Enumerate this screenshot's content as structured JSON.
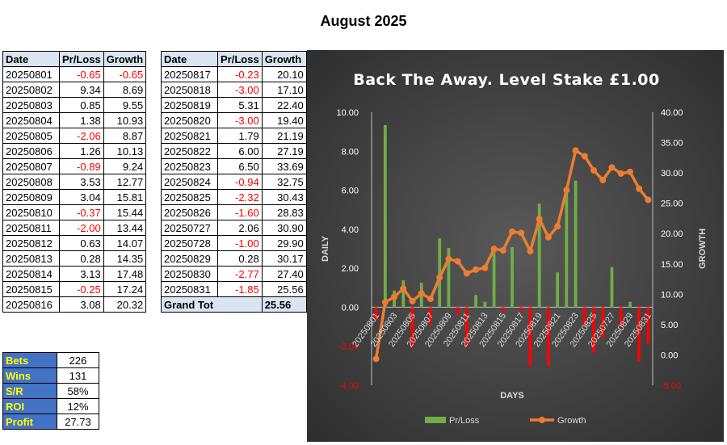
{
  "page_title": "August 2025",
  "table_headers": {
    "date": "Date",
    "pl": "Pr/Loss",
    "growth": "Growth"
  },
  "left_rows": [
    {
      "date": "20250801",
      "pl": "-0.65",
      "growth": "-0.65"
    },
    {
      "date": "20250802",
      "pl": "9.34",
      "growth": "8.69"
    },
    {
      "date": "20250803",
      "pl": "0.85",
      "growth": "9.55"
    },
    {
      "date": "20250804",
      "pl": "1.38",
      "growth": "10.93"
    },
    {
      "date": "20250805",
      "pl": "-2.06",
      "growth": "8.87"
    },
    {
      "date": "20250806",
      "pl": "1.26",
      "growth": "10.13"
    },
    {
      "date": "20250807",
      "pl": "-0.89",
      "growth": "9.24"
    },
    {
      "date": "20250808",
      "pl": "3.53",
      "growth": "12.77"
    },
    {
      "date": "20250809",
      "pl": "3.04",
      "growth": "15.81"
    },
    {
      "date": "20250810",
      "pl": "-0.37",
      "growth": "15.44"
    },
    {
      "date": "20250811",
      "pl": "-2.00",
      "growth": "13.44"
    },
    {
      "date": "20250812",
      "pl": "0.63",
      "growth": "14.07"
    },
    {
      "date": "20250813",
      "pl": "0.28",
      "growth": "14.35"
    },
    {
      "date": "20250814",
      "pl": "3.13",
      "growth": "17.48"
    },
    {
      "date": "20250815",
      "pl": "-0.25",
      "growth": "17.24"
    },
    {
      "date": "20250816",
      "pl": "3.08",
      "growth": "20.32"
    }
  ],
  "right_rows": [
    {
      "date": "20250817",
      "pl": "-0.23",
      "growth": "20.10"
    },
    {
      "date": "20250818",
      "pl": "-3.00",
      "growth": "17.10"
    },
    {
      "date": "20250819",
      "pl": "5.31",
      "growth": "22.40"
    },
    {
      "date": "20250820",
      "pl": "-3.00",
      "growth": "19.40"
    },
    {
      "date": "20250821",
      "pl": "1.79",
      "growth": "21.19"
    },
    {
      "date": "20250822",
      "pl": "6.00",
      "growth": "27.19"
    },
    {
      "date": "20250823",
      "pl": "6.50",
      "growth": "33.69"
    },
    {
      "date": "20250824",
      "pl": "-0.94",
      "growth": "32.75"
    },
    {
      "date": "20250825",
      "pl": "-2.32",
      "growth": "30.43"
    },
    {
      "date": "20250826",
      "pl": "-1.60",
      "growth": "28.83"
    },
    {
      "date": "20250727",
      "pl": "2.06",
      "growth": "30.90"
    },
    {
      "date": "20250728",
      "pl": "-1.00",
      "growth": "29.90"
    },
    {
      "date": "20250829",
      "pl": "0.28",
      "growth": "30.17"
    },
    {
      "date": "20250830",
      "pl": "-2.77",
      "growth": "27.40"
    },
    {
      "date": "20250831",
      "pl": "-1.85",
      "growth": "25.56"
    }
  ],
  "grand_total": {
    "label": "Grand Tot",
    "value": "25.56"
  },
  "stats": [
    {
      "label": "Bets",
      "value": "226"
    },
    {
      "label": "Wins",
      "value": "131"
    },
    {
      "label": "S/R",
      "value": "58%"
    },
    {
      "label": "ROI",
      "value": "12%"
    },
    {
      "label": "Profit",
      "value": "27.73"
    }
  ],
  "colors": {
    "negative_text": "#ff0000",
    "header_bg": "#dbe4f1",
    "stat_label_bg": "#4472c4",
    "stat_label_text": "#ffff00",
    "bar_positive": "#70ad47",
    "bar_negative": "#ff0000",
    "line": "#ed7d31",
    "axis_left_text": "#ffffff",
    "axis_right_text": "#ffffff",
    "axis_right_negative_text": "#ff0000"
  },
  "chart_data": {
    "type": "bar+line",
    "title": "Back The Away. Level Stake £1.00",
    "xlabel": "DAYS",
    "ylabel_left": "DAILY",
    "ylabel_right": "GROWTH",
    "ylim_left": [
      -4,
      10
    ],
    "ylim_right": [
      -5,
      40
    ],
    "yticks_left": [
      "-4.00",
      "-2.00",
      "0.00",
      "2.00",
      "4.00",
      "6.00",
      "8.00",
      "10.00"
    ],
    "yticks_right": [
      "-5.00",
      "0.00",
      "5.00",
      "10.00",
      "15.00",
      "20.00",
      "25.00",
      "30.00",
      "35.00",
      "40.00"
    ],
    "grid": false,
    "legend_position": "bottom",
    "categories": [
      "20250801",
      "20250802",
      "20250803",
      "20250804",
      "20250805",
      "20250806",
      "20250807",
      "20250808",
      "20250809",
      "20250810",
      "20250811",
      "20250812",
      "20250813",
      "20250814",
      "20250815",
      "20250816",
      "20250817",
      "20250818",
      "20250819",
      "20250820",
      "20250821",
      "20250822",
      "20250823",
      "20250824",
      "20250825",
      "20250826",
      "20250727",
      "20250728",
      "20250829",
      "20250830",
      "20250831"
    ],
    "x_tick_labels": [
      "20250801",
      "20250803",
      "20250805",
      "20250807",
      "20250809",
      "20250811",
      "20250813",
      "20250815",
      "20250817",
      "20250819",
      "20250821",
      "20250823",
      "20250825",
      "20250727",
      "20250829",
      "20250831"
    ],
    "series": [
      {
        "name": "Pr/Loss",
        "type": "bar",
        "axis": "left",
        "values": [
          -0.65,
          9.34,
          0.85,
          1.38,
          -2.06,
          1.26,
          -0.89,
          3.53,
          3.04,
          -0.37,
          -2.0,
          0.63,
          0.28,
          3.13,
          -0.25,
          3.08,
          -0.23,
          -3.0,
          5.31,
          -3.0,
          1.79,
          6.0,
          6.5,
          -0.94,
          -2.32,
          -1.6,
          2.06,
          -1.0,
          0.28,
          -2.77,
          -1.85
        ]
      },
      {
        "name": "Growth",
        "type": "line",
        "axis": "right",
        "values": [
          -0.65,
          8.69,
          9.55,
          10.93,
          8.87,
          10.13,
          9.24,
          12.77,
          15.81,
          15.44,
          13.44,
          14.07,
          14.35,
          17.48,
          17.24,
          20.32,
          20.1,
          17.1,
          22.4,
          19.4,
          21.19,
          27.19,
          33.69,
          32.75,
          30.43,
          28.83,
          30.9,
          29.9,
          30.17,
          27.4,
          25.56
        ]
      }
    ]
  }
}
